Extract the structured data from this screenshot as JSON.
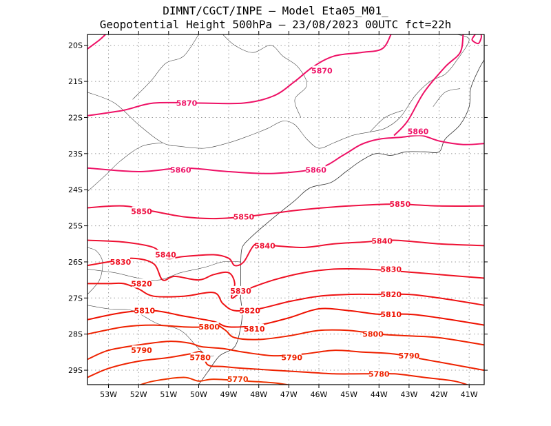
{
  "title": {
    "line1": "DIMNT/CGCT/INPE –  Model Eta05_M01_",
    "line2": "Geopotential Height 500hPa –  23/08/2023 00UTC fct=22h"
  },
  "map": {
    "lon_range": [
      -53.7,
      -40.5
    ],
    "lat_range": [
      -29.4,
      -19.7
    ],
    "lon_ticks": [
      -53,
      -52,
      -51,
      -50,
      -49,
      -48,
      -47,
      -46,
      -45,
      -44,
      -43,
      -42,
      -41
    ],
    "lon_tick_labels": [
      "53W",
      "52W",
      "51W",
      "50W",
      "49W",
      "48W",
      "47W",
      "46W",
      "45W",
      "44W",
      "43W",
      "42W",
      "41W"
    ],
    "lat_ticks": [
      -20,
      -21,
      -22,
      -23,
      -24,
      -25,
      -26,
      -27,
      -28,
      -29
    ],
    "lat_tick_labels": [
      "20S",
      "21S",
      "22S",
      "23S",
      "24S",
      "25S",
      "26S",
      "27S",
      "28S",
      "29S"
    ],
    "gridlines": "dotted"
  },
  "contours": [
    {
      "level": 5870,
      "label": "5870",
      "color": "#ee1166",
      "lines": [
        [
          [
            -53.7,
            -20.1
          ],
          [
            -53.3,
            -19.85
          ],
          [
            -53.1,
            -19.7
          ]
        ],
        [
          [
            -53.7,
            -21.95
          ],
          [
            -52.5,
            -21.8
          ],
          [
            -51.5,
            -21.6
          ],
          [
            -50,
            -21.6
          ],
          [
            -48.5,
            -21.6
          ],
          [
            -47.5,
            -21.4
          ],
          [
            -46.8,
            -21.0
          ],
          [
            -46.2,
            -20.6
          ],
          [
            -45.5,
            -20.3
          ],
          [
            -44.6,
            -20.2
          ],
          [
            -43.9,
            -20.1
          ],
          [
            -43.6,
            -19.7
          ]
        ],
        [
          [
            -40.8,
            -19.7
          ],
          [
            -40.9,
            -19.85
          ],
          [
            -40.7,
            -19.95
          ],
          [
            -40.6,
            -19.8
          ],
          [
            -40.6,
            -19.7
          ]
        ]
      ],
      "label_positions": [
        [
          -50.4,
          -21.6
        ],
        [
          -45.9,
          -20.7
        ]
      ]
    },
    {
      "level": 5860,
      "label": "5860",
      "color": "#ee1166",
      "lines": [
        [
          [
            -53.7,
            -23.4
          ],
          [
            -52,
            -23.5
          ],
          [
            -50.5,
            -23.4
          ],
          [
            -49,
            -23.5
          ],
          [
            -47.5,
            -23.55
          ],
          [
            -46,
            -23.4
          ],
          [
            -45.2,
            -23.05
          ],
          [
            -44.6,
            -22.75
          ],
          [
            -44,
            -22.6
          ],
          [
            -43.3,
            -22.55
          ],
          [
            -42.6,
            -22.5
          ],
          [
            -42.0,
            -22.65
          ],
          [
            -41.2,
            -22.75
          ],
          [
            -40.5,
            -22.72
          ]
        ],
        [
          [
            -43.5,
            -22.5
          ],
          [
            -43.05,
            -22.1
          ],
          [
            -42.5,
            -21.3
          ],
          [
            -41.8,
            -20.6
          ],
          [
            -41.3,
            -20.2
          ],
          [
            -41.2,
            -19.7
          ]
        ]
      ],
      "label_positions": [
        [
          -50.6,
          -23.45
        ],
        [
          -46.1,
          -23.45
        ],
        [
          -42.7,
          -22.38
        ]
      ]
    },
    {
      "level": 5850,
      "label": "5850",
      "color": "#ee1144",
      "lines": [
        [
          [
            -53.7,
            -24.5
          ],
          [
            -52.5,
            -24.45
          ],
          [
            -51.5,
            -24.6
          ],
          [
            -50.5,
            -24.75
          ],
          [
            -49.5,
            -24.8
          ],
          [
            -48.5,
            -24.75
          ],
          [
            -47.5,
            -24.65
          ],
          [
            -46.5,
            -24.55
          ],
          [
            -45,
            -24.45
          ],
          [
            -43.5,
            -24.4
          ],
          [
            -42,
            -24.45
          ],
          [
            -40.5,
            -24.45
          ]
        ]
      ],
      "label_positions": [
        [
          -51.9,
          -24.6
        ],
        [
          -48.5,
          -24.75
        ],
        [
          -43.3,
          -24.4
        ]
      ]
    },
    {
      "level": 5840,
      "label": "5840",
      "color": "#ee1133",
      "lines": [
        [
          [
            -53.7,
            -25.4
          ],
          [
            -52.5,
            -25.45
          ],
          [
            -51.5,
            -25.6
          ],
          [
            -51.1,
            -25.9
          ],
          [
            -50.5,
            -25.85
          ],
          [
            -49.5,
            -25.8
          ],
          [
            -49,
            -25.9
          ],
          [
            -48.8,
            -26.1
          ],
          [
            -48.5,
            -26.0
          ],
          [
            -48.1,
            -25.5
          ],
          [
            -47.5,
            -25.55
          ],
          [
            -46.5,
            -25.6
          ],
          [
            -45.5,
            -25.5
          ],
          [
            -44.5,
            -25.45
          ],
          [
            -43.5,
            -25.4
          ],
          [
            -42,
            -25.5
          ],
          [
            -40.5,
            -25.55
          ]
        ]
      ],
      "label_positions": [
        [
          -51.1,
          -25.8
        ],
        [
          -47.8,
          -25.55
        ],
        [
          -43.9,
          -25.42
        ]
      ]
    },
    {
      "level": 5830,
      "label": "5830",
      "color": "#ee1122",
      "lines": [
        [
          [
            -53.7,
            -26.1
          ],
          [
            -53,
            -26.0
          ],
          [
            -52.2,
            -25.9
          ],
          [
            -51.5,
            -26.05
          ],
          [
            -51.2,
            -26.5
          ],
          [
            -50.8,
            -26.4
          ],
          [
            -50,
            -26.5
          ],
          [
            -49.5,
            -26.35
          ],
          [
            -49,
            -26.3
          ],
          [
            -48.8,
            -26.6
          ],
          [
            -48.9,
            -27.0
          ],
          [
            -48.5,
            -26.8
          ],
          [
            -47.5,
            -26.5
          ],
          [
            -46.5,
            -26.3
          ],
          [
            -45.5,
            -26.2
          ],
          [
            -44.5,
            -26.2
          ],
          [
            -43.5,
            -26.25
          ],
          [
            -42,
            -26.35
          ],
          [
            -40.5,
            -26.45
          ]
        ]
      ],
      "label_positions": [
        [
          -52.6,
          -26.0
        ],
        [
          -48.6,
          -26.8
        ],
        [
          -43.6,
          -26.2
        ]
      ]
    },
    {
      "level": 5820,
      "label": "5820",
      "color": "#ee1111",
      "lines": [
        [
          [
            -53.7,
            -26.6
          ],
          [
            -53,
            -26.6
          ],
          [
            -52.5,
            -26.6
          ],
          [
            -52,
            -26.75
          ],
          [
            -51.5,
            -26.95
          ],
          [
            -50.5,
            -26.95
          ],
          [
            -49.5,
            -26.85
          ],
          [
            -49.2,
            -27.15
          ],
          [
            -48.8,
            -27.35
          ],
          [
            -48,
            -27.3
          ],
          [
            -47,
            -27.1
          ],
          [
            -46,
            -26.95
          ],
          [
            -45,
            -26.9
          ],
          [
            -44,
            -26.9
          ],
          [
            -43,
            -26.9
          ],
          [
            -42,
            -27.0
          ],
          [
            -40.5,
            -27.2
          ]
        ]
      ],
      "label_positions": [
        [
          -51.9,
          -26.6
        ],
        [
          -48.3,
          -27.35
        ],
        [
          -43.6,
          -26.9
        ]
      ]
    },
    {
      "level": 5810,
      "label": "5810",
      "color": "#ee1100",
      "lines": [
        [
          [
            -53.7,
            -27.6
          ],
          [
            -52.5,
            -27.4
          ],
          [
            -51.5,
            -27.35
          ],
          [
            -50.5,
            -27.5
          ],
          [
            -49.5,
            -27.65
          ],
          [
            -49,
            -27.8
          ],
          [
            -48,
            -27.75
          ],
          [
            -47,
            -27.55
          ],
          [
            -46,
            -27.3
          ],
          [
            -45,
            -27.35
          ],
          [
            -44,
            -27.45
          ],
          [
            -43,
            -27.45
          ],
          [
            -42,
            -27.55
          ],
          [
            -40.5,
            -27.75
          ]
        ]
      ],
      "label_positions": [
        [
          -51.8,
          -27.35
        ],
        [
          -48.15,
          -27.85
        ],
        [
          -43.6,
          -27.45
        ]
      ]
    },
    {
      "level": 5800,
      "label": "5800",
      "color": "#ee2200",
      "lines": [
        [
          [
            -53.7,
            -28.0
          ],
          [
            -52.5,
            -27.8
          ],
          [
            -51.5,
            -27.75
          ],
          [
            -50.5,
            -27.8
          ],
          [
            -49.8,
            -27.8
          ],
          [
            -49.5,
            -27.7
          ],
          [
            -49.1,
            -27.9
          ],
          [
            -48.8,
            -28.1
          ],
          [
            -48,
            -28.15
          ],
          [
            -47,
            -28.05
          ],
          [
            -46,
            -27.9
          ],
          [
            -45,
            -27.9
          ],
          [
            -44,
            -28.0
          ],
          [
            -43,
            -28.05
          ],
          [
            -42,
            -28.1
          ],
          [
            -40.5,
            -28.3
          ]
        ]
      ],
      "label_positions": [
        [
          -49.65,
          -27.8
        ],
        [
          -44.2,
          -28.0
        ]
      ]
    },
    {
      "level": 5790,
      "label": "5790",
      "color": "#ee2200",
      "lines": [
        [
          [
            -53.7,
            -28.7
          ],
          [
            -53,
            -28.45
          ],
          [
            -52,
            -28.3
          ],
          [
            -51,
            -28.2
          ],
          [
            -50.3,
            -28.25
          ],
          [
            -49.9,
            -28.35
          ],
          [
            -49.2,
            -28.4
          ],
          [
            -48.5,
            -28.5
          ],
          [
            -47.5,
            -28.6
          ],
          [
            -46.5,
            -28.55
          ],
          [
            -45.5,
            -28.45
          ],
          [
            -44.5,
            -28.5
          ],
          [
            -43.5,
            -28.55
          ],
          [
            -42.5,
            -28.7
          ],
          [
            -40.5,
            -29.0
          ]
        ]
      ],
      "label_positions": [
        [
          -51.9,
          -28.45
        ],
        [
          -46.9,
          -28.65
        ],
        [
          -43.0,
          -28.6
        ]
      ]
    },
    {
      "level": 5780,
      "label": "5780",
      "color": "#ee2200",
      "lines": [
        [
          [
            -53.7,
            -29.2
          ],
          [
            -53,
            -28.95
          ],
          [
            -52,
            -28.75
          ],
          [
            -51,
            -28.65
          ],
          [
            -50.3,
            -28.55
          ],
          [
            -49.9,
            -28.5
          ],
          [
            -49.7,
            -28.85
          ],
          [
            -49.2,
            -28.9
          ],
          [
            -48.5,
            -28.95
          ],
          [
            -47.5,
            -29.0
          ],
          [
            -46.5,
            -29.05
          ],
          [
            -45.5,
            -29.1
          ],
          [
            -44.5,
            -29.1
          ],
          [
            -43.5,
            -29.1
          ],
          [
            -42.5,
            -29.2
          ],
          [
            -41.5,
            -29.3
          ],
          [
            -40.9,
            -29.45
          ]
        ]
      ],
      "label_positions": [
        [
          -49.95,
          -28.65
        ],
        [
          -44.0,
          -29.1
        ]
      ]
    },
    {
      "level": 5770,
      "label": "5770",
      "color": "#ee3300",
      "lines": [
        [
          [
            -52.1,
            -29.45
          ],
          [
            -51.5,
            -29.3
          ],
          [
            -50.5,
            -29.2
          ],
          [
            -50,
            -29.3
          ],
          [
            -49.5,
            -29.25
          ],
          [
            -48.5,
            -29.3
          ],
          [
            -47.5,
            -29.35
          ],
          [
            -46.7,
            -29.45
          ]
        ]
      ],
      "label_positions": [
        [
          -48.7,
          -29.25
        ]
      ]
    }
  ],
  "coastline": [
    [
      [
        -50.0,
        -29.4
      ],
      [
        -49.7,
        -29.05
      ],
      [
        -49.3,
        -28.6
      ],
      [
        -48.8,
        -28.35
      ],
      [
        -48.6,
        -27.8
      ],
      [
        -48.55,
        -27.4
      ],
      [
        -48.6,
        -27.0
      ],
      [
        -48.6,
        -26.4
      ],
      [
        -48.6,
        -26.0
      ],
      [
        -48.55,
        -25.6
      ],
      [
        -48.3,
        -25.35
      ],
      [
        -47.9,
        -25.05
      ],
      [
        -47.4,
        -24.7
      ],
      [
        -46.8,
        -24.3
      ],
      [
        -46.3,
        -23.95
      ],
      [
        -45.6,
        -23.8
      ],
      [
        -45.1,
        -23.5
      ],
      [
        -44.6,
        -23.2
      ],
      [
        -44.1,
        -23.0
      ],
      [
        -43.6,
        -23.05
      ],
      [
        -43.1,
        -22.95
      ],
      [
        -42.5,
        -22.95
      ],
      [
        -42.0,
        -22.95
      ],
      [
        -41.8,
        -22.6
      ],
      [
        -41.3,
        -22.2
      ],
      [
        -41.0,
        -21.7
      ],
      [
        -40.95,
        -21.2
      ],
      [
        -40.7,
        -20.7
      ],
      [
        -40.5,
        -20.4
      ]
    ]
  ],
  "borders": [
    [
      [
        -53.7,
        -21.3
      ],
      [
        -52.8,
        -21.6
      ],
      [
        -52.0,
        -22.2
      ],
      [
        -51.2,
        -22.7
      ],
      [
        -50.6,
        -22.8
      ],
      [
        -49.8,
        -22.85
      ],
      [
        -49.0,
        -22.7
      ],
      [
        -48.3,
        -22.5
      ],
      [
        -47.7,
        -22.3
      ],
      [
        -47.2,
        -22.1
      ],
      [
        -46.8,
        -22.2
      ],
      [
        -46.4,
        -22.6
      ],
      [
        -46.0,
        -22.85
      ],
      [
        -45.5,
        -22.7
      ],
      [
        -44.9,
        -22.5
      ],
      [
        -44.3,
        -22.4
      ],
      [
        -43.8,
        -22.3
      ],
      [
        -43.3,
        -22.0
      ],
      [
        -42.8,
        -21.4
      ],
      [
        -42.3,
        -21.0
      ],
      [
        -41.8,
        -20.8
      ],
      [
        -41.4,
        -20.4
      ],
      [
        -41.0,
        -19.85
      ],
      [
        -41.4,
        -19.7
      ]
    ],
    [
      [
        -53.7,
        -24.05
      ],
      [
        -53.1,
        -23.6
      ],
      [
        -52.6,
        -23.2
      ],
      [
        -51.9,
        -22.8
      ],
      [
        -51.2,
        -22.7
      ]
    ],
    [
      [
        -53.7,
        -26.2
      ],
      [
        -52.8,
        -26.3
      ],
      [
        -52.0,
        -26.45
      ],
      [
        -51.3,
        -26.5
      ],
      [
        -50.6,
        -26.3
      ],
      [
        -49.8,
        -26.15
      ],
      [
        -49.2,
        -26.0
      ],
      [
        -48.6,
        -26.0
      ]
    ],
    [
      [
        -53.7,
        -27.2
      ],
      [
        -53.0,
        -27.3
      ],
      [
        -52.2,
        -27.35
      ],
      [
        -51.4,
        -27.7
      ],
      [
        -50.6,
        -27.9
      ],
      [
        -50.0,
        -28.4
      ],
      [
        -49.7,
        -28.6
      ],
      [
        -49.5,
        -28.6
      ]
    ],
    [
      [
        -53.7,
        -25.6
      ],
      [
        -53.4,
        -25.7
      ],
      [
        -53.2,
        -26.0
      ],
      [
        -53.3,
        -26.5
      ],
      [
        -53.7,
        -26.9
      ]
    ],
    [
      [
        -50.0,
        -19.7
      ],
      [
        -50.5,
        -20.3
      ],
      [
        -51.1,
        -20.5
      ],
      [
        -51.6,
        -21.0
      ],
      [
        -52.2,
        -21.5
      ]
    ],
    [
      [
        -49.2,
        -19.7
      ],
      [
        -48.8,
        -20.0
      ],
      [
        -48.2,
        -20.2
      ],
      [
        -47.6,
        -20.0
      ],
      [
        -47.2,
        -20.3
      ],
      [
        -46.7,
        -20.6
      ],
      [
        -46.4,
        -21.1
      ],
      [
        -46.8,
        -21.5
      ],
      [
        -46.6,
        -22.0
      ]
    ],
    [
      [
        -43.2,
        -21.8
      ],
      [
        -43.8,
        -22.0
      ],
      [
        -44.3,
        -22.4
      ]
    ],
    [
      [
        -41.3,
        -21.2
      ],
      [
        -41.8,
        -21.3
      ],
      [
        -42.2,
        -21.7
      ]
    ]
  ]
}
